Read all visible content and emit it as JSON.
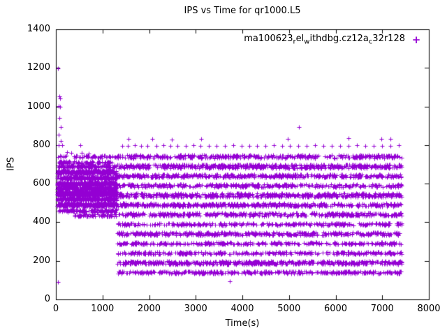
{
  "chart_data": {
    "type": "scatter",
    "title": "IPS vs Time for qr1000.L5",
    "xlabel": "Time(s)",
    "ylabel": "IPS",
    "xlim": [
      0,
      8000
    ],
    "ylim": [
      0,
      1400
    ],
    "xticks": [
      0,
      1000,
      2000,
      3000,
      4000,
      5000,
      6000,
      7000,
      8000
    ],
    "yticks": [
      0,
      200,
      400,
      600,
      800,
      1000,
      1200,
      1400
    ],
    "grid": false,
    "legend_position": "top-right-inside",
    "series": [
      {
        "name": "ma100623_rel_withdbg.cz12a_c32r128",
        "name_segments": [
          {
            "text": "ma100623",
            "sub": false
          },
          {
            "text": "r",
            "sub": true
          },
          {
            "text": "el",
            "sub": false
          },
          {
            "text": "w",
            "sub": true
          },
          {
            "text": "ithdbg.cz12a",
            "sub": false
          },
          {
            "text": "c",
            "sub": true
          },
          {
            "text": "32r128",
            "sub": false
          }
        ],
        "marker": "plus",
        "marker_glyph": "+",
        "color": "#9400d3",
        "bands": [
          {
            "y": 460,
            "jitter": 7,
            "x0": 60,
            "x1": 1310,
            "count": 120
          },
          {
            "y": 490,
            "jitter": 8,
            "x0": 30,
            "x1": 1310,
            "count": 350
          },
          {
            "y": 520,
            "jitter": 8,
            "x0": 30,
            "x1": 1310,
            "count": 250
          },
          {
            "y": 550,
            "jitter": 10,
            "x0": 30,
            "x1": 1310,
            "count": 550
          },
          {
            "y": 575,
            "jitter": 8,
            "x0": 30,
            "x1": 1310,
            "count": 250
          },
          {
            "y": 600,
            "jitter": 8,
            "x0": 30,
            "x1": 1310,
            "count": 300
          },
          {
            "y": 630,
            "jitter": 8,
            "x0": 30,
            "x1": 1310,
            "count": 250
          },
          {
            "y": 660,
            "jitter": 8,
            "x0": 30,
            "x1": 1310,
            "count": 300
          },
          {
            "y": 690,
            "jitter": 6,
            "x0": 30,
            "x1": 1310,
            "count": 140
          },
          {
            "y": 710,
            "jitter": 6,
            "x0": 60,
            "x1": 1200,
            "count": 80
          },
          {
            "y": 740,
            "jitter": 6,
            "x0": 60,
            "x1": 1310,
            "count": 50
          },
          {
            "y": 435,
            "jitter": 6,
            "x0": 400,
            "x1": 1310,
            "count": 60
          },
          {
            "y": 140,
            "jitter": 6,
            "x0": 1310,
            "x1": 7420,
            "count": 350
          },
          {
            "y": 190,
            "jitter": 8,
            "x0": 1310,
            "x1": 7420,
            "count": 550
          },
          {
            "y": 240,
            "jitter": 6,
            "x0": 1310,
            "x1": 7420,
            "count": 300
          },
          {
            "y": 290,
            "jitter": 6,
            "x0": 1310,
            "x1": 7420,
            "count": 300
          },
          {
            "y": 340,
            "jitter": 8,
            "x0": 1310,
            "x1": 7420,
            "count": 400
          },
          {
            "y": 390,
            "jitter": 6,
            "x0": 1310,
            "x1": 7420,
            "count": 300
          },
          {
            "y": 440,
            "jitter": 8,
            "x0": 1310,
            "x1": 7420,
            "count": 400
          },
          {
            "y": 490,
            "jitter": 8,
            "x0": 1310,
            "x1": 7420,
            "count": 450
          },
          {
            "y": 540,
            "jitter": 10,
            "x0": 1310,
            "x1": 7420,
            "count": 550
          },
          {
            "y": 590,
            "jitter": 8,
            "x0": 1310,
            "x1": 7420,
            "count": 350
          },
          {
            "y": 640,
            "jitter": 8,
            "x0": 1310,
            "x1": 7420,
            "count": 450
          },
          {
            "y": 690,
            "jitter": 10,
            "x0": 1310,
            "x1": 7420,
            "count": 550
          },
          {
            "y": 740,
            "jitter": 8,
            "x0": 1310,
            "x1": 7420,
            "count": 400
          }
        ],
        "outlier_points": [
          [
            50,
            1197
          ],
          [
            72,
            1052
          ],
          [
            85,
            1043
          ],
          [
            60,
            1003
          ],
          [
            92,
            998
          ],
          [
            78,
            940
          ],
          [
            98,
            893
          ],
          [
            62,
            855
          ],
          [
            108,
            822
          ],
          [
            55,
            800
          ],
          [
            140,
            798
          ],
          [
            40,
            737
          ],
          [
            48,
            90
          ],
          [
            240,
            762
          ],
          [
            330,
            758
          ],
          [
            520,
            800
          ],
          [
            560,
            760
          ],
          [
            700,
            757
          ],
          [
            830,
            745
          ],
          [
            950,
            743
          ],
          [
            1050,
            710
          ],
          [
            1150,
            740
          ],
          [
            3730,
            95
          ],
          [
            5210,
            893
          ],
          [
            1560,
            832
          ],
          [
            2060,
            833
          ],
          [
            2480,
            830
          ],
          [
            3120,
            832
          ],
          [
            4980,
            831
          ],
          [
            6280,
            835
          ],
          [
            6980,
            833
          ],
          [
            7180,
            832
          ],
          [
            1420,
            797
          ],
          [
            1540,
            795
          ],
          [
            1700,
            798
          ],
          [
            1830,
            795
          ],
          [
            1960,
            797
          ],
          [
            2150,
            796
          ],
          [
            2310,
            798
          ],
          [
            2450,
            795
          ],
          [
            2600,
            797
          ],
          [
            2780,
            795
          ],
          [
            2950,
            798
          ],
          [
            3100,
            796
          ],
          [
            3280,
            795
          ],
          [
            3450,
            797
          ],
          [
            3620,
            795
          ],
          [
            3800,
            798
          ],
          [
            3980,
            796
          ],
          [
            4150,
            795
          ],
          [
            4320,
            797
          ],
          [
            4500,
            795
          ],
          [
            4680,
            798
          ],
          [
            4850,
            796
          ],
          [
            5020,
            795
          ],
          [
            5200,
            797
          ],
          [
            5380,
            795
          ],
          [
            5560,
            798
          ],
          [
            5740,
            796
          ],
          [
            5920,
            795
          ],
          [
            6100,
            797
          ],
          [
            6280,
            795
          ],
          [
            6460,
            798
          ],
          [
            6640,
            796
          ],
          [
            6820,
            795
          ],
          [
            7000,
            797
          ],
          [
            7180,
            795
          ],
          [
            7350,
            798
          ]
        ]
      }
    ]
  }
}
